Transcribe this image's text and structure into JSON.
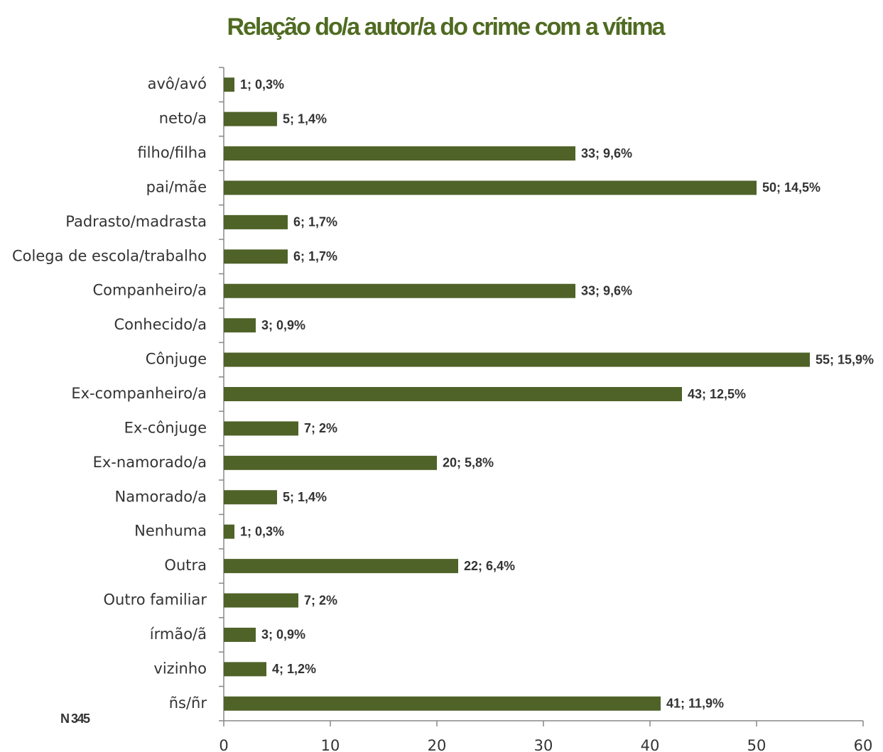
{
  "chart_data": {
    "type": "bar",
    "orientation": "horizontal",
    "title": "Relação do/a autor/a do crime com a vítima",
    "annotation": "N 345",
    "categories": [
      "avô/avó",
      "neto/a",
      "filho/filha",
      "pai/mãe",
      "Padrasto/madrasta",
      "Colega de escola/trabalho",
      "Companheiro/a",
      "Conhecido/a",
      "Cônjuge",
      "Ex-companheiro/a",
      "Ex-cônjuge",
      "Ex-namorado/a",
      "Namorado/a",
      "Nenhuma",
      "Outra",
      "Outro familiar",
      "írmão/ã",
      "vizinho",
      "ñs/ñr"
    ],
    "values": [
      1,
      5,
      33,
      50,
      6,
      6,
      33,
      3,
      55,
      43,
      7,
      20,
      5,
      1,
      22,
      7,
      3,
      4,
      41
    ],
    "value_labels": [
      "1; 0,3%",
      "5; 1,4%",
      "33; 9,6%",
      "50; 14,5%",
      "6; 1,7%",
      "6; 1,7%",
      "33; 9,6%",
      "3; 0,9%",
      "55; 15,9%",
      "43; 12,5%",
      "7; 2%",
      "20; 5,8%",
      "5; 1,4%",
      "1; 0,3%",
      "22; 6,4%",
      "7; 2%",
      "3; 0,9%",
      "4; 1,2%",
      "41; 11,9%"
    ],
    "color": "#4f6228",
    "xlim": [
      0,
      60
    ],
    "xticks": [
      0,
      10,
      20,
      30,
      40,
      50,
      60
    ],
    "grid": false
  }
}
